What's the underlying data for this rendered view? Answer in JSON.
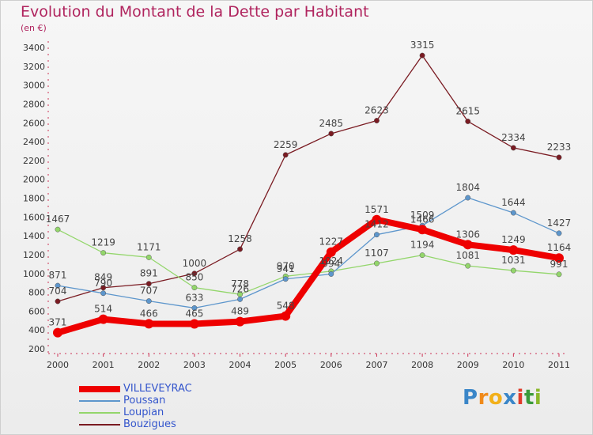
{
  "chart_data": {
    "type": "line",
    "title": "Evolution du Montant de la Dette par Habitant",
    "subtitle": "(en €)",
    "categories": [
      "2000",
      "2001",
      "2002",
      "2003",
      "2004",
      "2005",
      "2006",
      "2007",
      "2008",
      "2009",
      "2010",
      "2011"
    ],
    "y_ticks": [
      200,
      400,
      600,
      800,
      1000,
      1200,
      1400,
      1600,
      1800,
      2000,
      2200,
      2400,
      2600,
      2800,
      3000,
      3200,
      3400
    ],
    "ylim": [
      200,
      3400
    ],
    "grid": false,
    "legend_position": "bottom-left",
    "series": [
      {
        "name": "VILLEVEYRAC",
        "color": "#ee0000",
        "values": [
          371,
          514,
          466,
          465,
          489,
          548,
          1227,
          1571,
          1466,
          1306,
          1249,
          1164
        ]
      },
      {
        "name": "Poussan",
        "color": "#5d96cc",
        "values": [
          871,
          790,
          707,
          633,
          726,
          941,
          994,
          1412,
          1509,
          1804,
          1644,
          1427
        ]
      },
      {
        "name": "Loupian",
        "color": "#93d66b",
        "values": [
          1467,
          1219,
          1171,
          850,
          778,
          970,
          1024,
          1107,
          1194,
          1081,
          1031,
          991
        ]
      },
      {
        "name": "Bouzigues",
        "color": "#7a1b22",
        "values": [
          704,
          849,
          891,
          1000,
          1258,
          2259,
          2485,
          2623,
          3315,
          2615,
          2334,
          2233
        ]
      }
    ]
  },
  "logo": {
    "letters": [
      "P",
      "r",
      "o",
      "x",
      "i",
      "t",
      "i"
    ],
    "colors": [
      "#3a86c8",
      "#f08a1a",
      "#f2b01a",
      "#3a86c8",
      "#e03a2a",
      "#3a9a3a",
      "#8ab82a"
    ]
  }
}
